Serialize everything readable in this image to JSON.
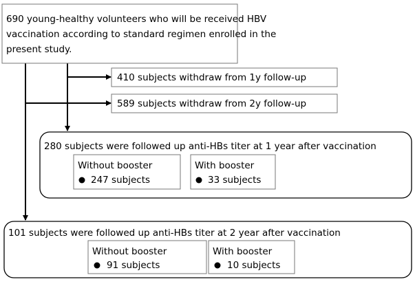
{
  "enrollment": {
    "lines": [
      "690 young-healthy volunteers who will be received HBV",
      "vaccination according to standard regimen enrolled in the",
      "present study."
    ]
  },
  "withdrawals": [
    "410 subjects withdraw from 1y follow-up",
    "589 subjects withdraw from 2y follow-up"
  ],
  "followups": [
    {
      "title": "280 subjects were followed up anti-HBs titer at 1 year after vaccination",
      "groups": [
        {
          "label": "Without booster",
          "count": "247 subjects"
        },
        {
          "label": "With booster",
          "count": "33 subjects"
        }
      ]
    },
    {
      "title": "101 subjects were followed up anti-HBs titer at 2 year after vaccination",
      "groups": [
        {
          "label": "Without booster",
          "count": "91 subjects"
        },
        {
          "label": "With booster",
          "count": "10 subjects"
        }
      ]
    }
  ]
}
